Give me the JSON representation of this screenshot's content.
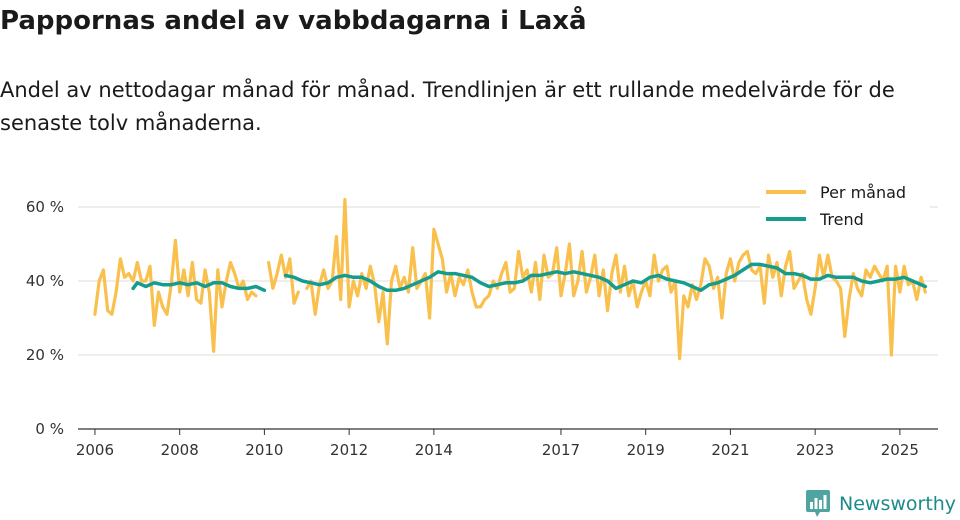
{
  "title": "Pappornas andel av vabbdagarna i Laxå",
  "subtitle": "Andel av nettodagar månad för månad. Trendlinjen är ett rullande medelvärde för de senaste tolv månaderna.",
  "brand": {
    "name": "Newsworthy",
    "icon": "bar-chart-logo-icon"
  },
  "colors": {
    "monthly": "#f9c04d",
    "trend": "#169c8e",
    "grid": "#dedede",
    "axis": "#333333"
  },
  "chart_data": {
    "type": "line",
    "title": "Pappornas andel av vabbdagarna i Laxå",
    "xlabel": "",
    "ylabel": "",
    "ylim": [
      0,
      70
    ],
    "xlim": [
      2005.6,
      2025.9
    ],
    "y_ticks": [
      0,
      20,
      40,
      60
    ],
    "y_tick_labels": [
      "0 %",
      "20 %",
      "40 %",
      "60 %"
    ],
    "x_ticks": [
      2006,
      2008,
      2010,
      2012,
      2014,
      2017,
      2019,
      2021,
      2023,
      2025
    ],
    "x_tick_labels": [
      "2006",
      "2008",
      "2010",
      "2012",
      "2014",
      "2017",
      "2019",
      "2021",
      "2023",
      "2025"
    ],
    "grid": true,
    "legend_position": "top-right",
    "series": [
      {
        "name": "Per månad",
        "values": [
          [
            2006.0,
            31
          ],
          [
            2006.1,
            40
          ],
          [
            2006.2,
            43
          ],
          [
            2006.3,
            32
          ],
          [
            2006.4,
            31
          ],
          [
            2006.5,
            37
          ],
          [
            2006.6,
            46
          ],
          [
            2006.7,
            41
          ],
          [
            2006.8,
            42
          ],
          [
            2006.9,
            40
          ],
          [
            2007.0,
            45
          ],
          [
            2007.1,
            40
          ],
          [
            2007.2,
            40
          ],
          [
            2007.3,
            44
          ],
          [
            2007.4,
            28
          ],
          [
            2007.5,
            37
          ],
          [
            2007.6,
            33
          ],
          [
            2007.7,
            31
          ],
          [
            2007.8,
            39
          ],
          [
            2007.9,
            51
          ],
          [
            2008.0,
            37
          ],
          [
            2008.1,
            43
          ],
          [
            2008.2,
            36
          ],
          [
            2008.3,
            45
          ],
          [
            2008.4,
            35
          ],
          [
            2008.5,
            34
          ],
          [
            2008.6,
            43
          ],
          [
            2008.7,
            37
          ],
          [
            2008.8,
            21
          ],
          [
            2008.9,
            43
          ],
          [
            2009.0,
            33
          ],
          [
            2009.1,
            40
          ],
          [
            2009.2,
            45
          ],
          [
            2009.3,
            42
          ],
          [
            2009.4,
            38
          ],
          [
            2009.5,
            40
          ],
          [
            2009.6,
            35
          ],
          [
            2009.7,
            37
          ],
          [
            2009.8,
            36
          ],
          [
            2009.9,
            null
          ],
          [
            2010.0,
            null
          ],
          [
            2010.1,
            45
          ],
          [
            2010.2,
            38
          ],
          [
            2010.3,
            42
          ],
          [
            2010.4,
            47
          ],
          [
            2010.5,
            41
          ],
          [
            2010.6,
            46
          ],
          [
            2010.7,
            34
          ],
          [
            2010.8,
            37
          ],
          [
            2010.9,
            null
          ],
          [
            2011.0,
            38
          ],
          [
            2011.1,
            40
          ],
          [
            2011.2,
            31
          ],
          [
            2011.3,
            39
          ],
          [
            2011.4,
            43
          ],
          [
            2011.5,
            38
          ],
          [
            2011.6,
            40
          ],
          [
            2011.7,
            52
          ],
          [
            2011.8,
            35
          ],
          [
            2011.9,
            62
          ],
          [
            2012.0,
            33
          ],
          [
            2012.1,
            40
          ],
          [
            2012.2,
            36
          ],
          [
            2012.3,
            42
          ],
          [
            2012.4,
            38
          ],
          [
            2012.5,
            44
          ],
          [
            2012.6,
            39
          ],
          [
            2012.7,
            29
          ],
          [
            2012.8,
            37
          ],
          [
            2012.9,
            23
          ],
          [
            2013.0,
            40
          ],
          [
            2013.1,
            44
          ],
          [
            2013.2,
            38
          ],
          [
            2013.3,
            41
          ],
          [
            2013.4,
            37
          ],
          [
            2013.5,
            49
          ],
          [
            2013.6,
            38
          ],
          [
            2013.7,
            40
          ],
          [
            2013.8,
            42
          ],
          [
            2013.9,
            30
          ],
          [
            2014.0,
            54
          ],
          [
            2014.1,
            50
          ],
          [
            2014.2,
            46
          ],
          [
            2014.3,
            37
          ],
          [
            2014.4,
            42
          ],
          [
            2014.5,
            36
          ],
          [
            2014.6,
            41
          ],
          [
            2014.7,
            39
          ],
          [
            2014.8,
            43
          ],
          [
            2014.9,
            37
          ],
          [
            2015.0,
            33
          ],
          [
            2015.1,
            33
          ],
          [
            2015.2,
            35
          ],
          [
            2015.3,
            36
          ],
          [
            2015.4,
            40
          ],
          [
            2015.5,
            38
          ],
          [
            2015.6,
            42
          ],
          [
            2015.7,
            45
          ],
          [
            2015.8,
            37
          ],
          [
            2015.9,
            38
          ],
          [
            2016.0,
            48
          ],
          [
            2016.1,
            41
          ],
          [
            2016.2,
            43
          ],
          [
            2016.3,
            37
          ],
          [
            2016.4,
            45
          ],
          [
            2016.5,
            35
          ],
          [
            2016.6,
            47
          ],
          [
            2016.7,
            41
          ],
          [
            2016.8,
            42
          ],
          [
            2016.9,
            49
          ],
          [
            2017.0,
            36
          ],
          [
            2017.1,
            42
          ],
          [
            2017.2,
            50
          ],
          [
            2017.3,
            36
          ],
          [
            2017.4,
            40
          ],
          [
            2017.5,
            48
          ],
          [
            2017.6,
            37
          ],
          [
            2017.7,
            41
          ],
          [
            2017.8,
            47
          ],
          [
            2017.9,
            36
          ],
          [
            2018.0,
            43
          ],
          [
            2018.1,
            32
          ],
          [
            2018.2,
            42
          ],
          [
            2018.3,
            47
          ],
          [
            2018.4,
            37
          ],
          [
            2018.5,
            44
          ],
          [
            2018.6,
            36
          ],
          [
            2018.7,
            40
          ],
          [
            2018.8,
            33
          ],
          [
            2018.9,
            37
          ],
          [
            2019.0,
            40
          ],
          [
            2019.1,
            36
          ],
          [
            2019.2,
            47
          ],
          [
            2019.3,
            40
          ],
          [
            2019.4,
            43
          ],
          [
            2019.5,
            44
          ],
          [
            2019.6,
            37
          ],
          [
            2019.7,
            40
          ],
          [
            2019.8,
            19
          ],
          [
            2019.9,
            36
          ],
          [
            2020.0,
            33
          ],
          [
            2020.1,
            39
          ],
          [
            2020.2,
            35
          ],
          [
            2020.3,
            39
          ],
          [
            2020.4,
            46
          ],
          [
            2020.5,
            44
          ],
          [
            2020.6,
            38
          ],
          [
            2020.7,
            41
          ],
          [
            2020.8,
            30
          ],
          [
            2020.9,
            42
          ],
          [
            2021.0,
            46
          ],
          [
            2021.1,
            40
          ],
          [
            2021.2,
            45
          ],
          [
            2021.3,
            47
          ],
          [
            2021.4,
            48
          ],
          [
            2021.5,
            43
          ],
          [
            2021.6,
            42
          ],
          [
            2021.7,
            44
          ],
          [
            2021.8,
            34
          ],
          [
            2021.9,
            47
          ],
          [
            2022.0,
            41
          ],
          [
            2022.1,
            45
          ],
          [
            2022.2,
            36
          ],
          [
            2022.3,
            44
          ],
          [
            2022.4,
            48
          ],
          [
            2022.5,
            38
          ],
          [
            2022.6,
            40
          ],
          [
            2022.7,
            42
          ],
          [
            2022.8,
            35
          ],
          [
            2022.9,
            31
          ],
          [
            2023.0,
            38
          ],
          [
            2023.1,
            47
          ],
          [
            2023.2,
            41
          ],
          [
            2023.3,
            47
          ],
          [
            2023.4,
            41
          ],
          [
            2023.5,
            40
          ],
          [
            2023.6,
            38
          ],
          [
            2023.7,
            25
          ],
          [
            2023.8,
            35
          ],
          [
            2023.9,
            42
          ],
          [
            2024.0,
            38
          ],
          [
            2024.1,
            36
          ],
          [
            2024.2,
            43
          ],
          [
            2024.3,
            41
          ],
          [
            2024.4,
            44
          ],
          [
            2024.5,
            42
          ],
          [
            2024.6,
            40
          ],
          [
            2024.7,
            44
          ],
          [
            2024.8,
            20
          ],
          [
            2024.9,
            44
          ],
          [
            2025.0,
            37
          ],
          [
            2025.1,
            44
          ],
          [
            2025.2,
            39
          ],
          [
            2025.3,
            40
          ],
          [
            2025.4,
            35
          ],
          [
            2025.5,
            41
          ],
          [
            2025.6,
            37
          ]
        ]
      },
      {
        "name": "Trend",
        "values": [
          [
            2006.9,
            38
          ],
          [
            2007.0,
            39.5
          ],
          [
            2007.2,
            38.5
          ],
          [
            2007.4,
            39.5
          ],
          [
            2007.6,
            39
          ],
          [
            2007.8,
            39
          ],
          [
            2008.0,
            39.5
          ],
          [
            2008.2,
            39
          ],
          [
            2008.4,
            39.5
          ],
          [
            2008.6,
            38.5
          ],
          [
            2008.8,
            39.5
          ],
          [
            2009.0,
            39.5
          ],
          [
            2009.2,
            38.5
          ],
          [
            2009.4,
            38
          ],
          [
            2009.6,
            38
          ],
          [
            2009.8,
            38.5
          ],
          [
            2010.0,
            37.5
          ],
          [
            2010.2,
            null
          ],
          [
            2010.5,
            41.5
          ],
          [
            2010.7,
            41
          ],
          [
            2010.9,
            40
          ],
          [
            2011.1,
            39.5
          ],
          [
            2011.3,
            39
          ],
          [
            2011.5,
            39.5
          ],
          [
            2011.7,
            41
          ],
          [
            2011.9,
            41.5
          ],
          [
            2012.1,
            41
          ],
          [
            2012.3,
            41
          ],
          [
            2012.5,
            40
          ],
          [
            2012.7,
            38.5
          ],
          [
            2012.9,
            37.5
          ],
          [
            2013.1,
            37.5
          ],
          [
            2013.3,
            38
          ],
          [
            2013.5,
            39
          ],
          [
            2013.7,
            40
          ],
          [
            2013.9,
            41
          ],
          [
            2014.1,
            42.5
          ],
          [
            2014.3,
            42
          ],
          [
            2014.5,
            42
          ],
          [
            2014.7,
            41.5
          ],
          [
            2014.9,
            41
          ],
          [
            2015.1,
            39.5
          ],
          [
            2015.3,
            38.5
          ],
          [
            2015.5,
            39
          ],
          [
            2015.7,
            39.5
          ],
          [
            2015.9,
            39.5
          ],
          [
            2016.1,
            40
          ],
          [
            2016.3,
            41.5
          ],
          [
            2016.5,
            41.5
          ],
          [
            2016.7,
            42
          ],
          [
            2016.9,
            42.5
          ],
          [
            2017.1,
            42
          ],
          [
            2017.3,
            42.5
          ],
          [
            2017.5,
            42
          ],
          [
            2017.7,
            41.5
          ],
          [
            2017.9,
            41
          ],
          [
            2018.1,
            40
          ],
          [
            2018.3,
            38
          ],
          [
            2018.5,
            39
          ],
          [
            2018.7,
            40
          ],
          [
            2018.9,
            39.5
          ],
          [
            2019.1,
            41
          ],
          [
            2019.3,
            41.5
          ],
          [
            2019.5,
            40.5
          ],
          [
            2019.7,
            40
          ],
          [
            2019.9,
            39.5
          ],
          [
            2020.1,
            38.5
          ],
          [
            2020.3,
            37.5
          ],
          [
            2020.5,
            39
          ],
          [
            2020.7,
            39.5
          ],
          [
            2020.9,
            40.5
          ],
          [
            2021.1,
            41.5
          ],
          [
            2021.3,
            43
          ],
          [
            2021.5,
            44.5
          ],
          [
            2021.7,
            44.5
          ],
          [
            2021.9,
            44
          ],
          [
            2022.1,
            43.5
          ],
          [
            2022.3,
            42
          ],
          [
            2022.5,
            42
          ],
          [
            2022.7,
            41.5
          ],
          [
            2022.9,
            40.5
          ],
          [
            2023.1,
            40.5
          ],
          [
            2023.3,
            41.5
          ],
          [
            2023.5,
            41
          ],
          [
            2023.7,
            41
          ],
          [
            2023.9,
            41
          ],
          [
            2024.1,
            40
          ],
          [
            2024.3,
            39.5
          ],
          [
            2024.5,
            40
          ],
          [
            2024.7,
            40.5
          ],
          [
            2024.9,
            40.5
          ],
          [
            2025.1,
            41
          ],
          [
            2025.3,
            40
          ],
          [
            2025.6,
            38.5
          ]
        ]
      }
    ]
  }
}
